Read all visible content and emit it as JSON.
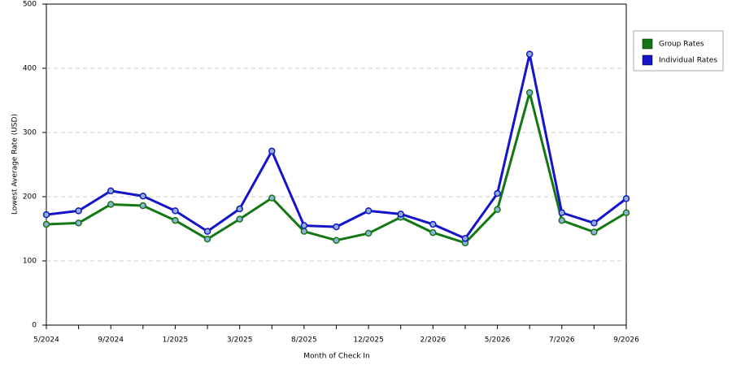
{
  "chart_data": {
    "type": "line",
    "x_label": "Month of Check In",
    "y_label": "Lowest Average Rate (USD)",
    "categories": [
      "5/2024",
      null,
      "9/2024",
      null,
      "1/2025",
      null,
      "3/2025",
      null,
      "8/2025",
      null,
      "12/2025",
      null,
      "2/2026",
      null,
      "5/2026",
      null,
      "7/2026",
      null,
      "9/2026"
    ],
    "series": [
      {
        "name": "Group Rates",
        "color": "#137813",
        "values": [
          157,
          159,
          188,
          186,
          163,
          134,
          165,
          198,
          146,
          132,
          143,
          168,
          144,
          128,
          180,
          362,
          163,
          145,
          175
        ]
      },
      {
        "name": "Individual Rates",
        "color": "#1414c8",
        "values": [
          172,
          178,
          209,
          201,
          178,
          146,
          181,
          271,
          155,
          153,
          178,
          173,
          157,
          135,
          205,
          422,
          175,
          159,
          197
        ]
      }
    ],
    "ylim": [
      0,
      500
    ],
    "yticks": [
      0,
      100,
      200,
      300,
      400,
      500
    ],
    "grid": true,
    "legend": "right"
  }
}
